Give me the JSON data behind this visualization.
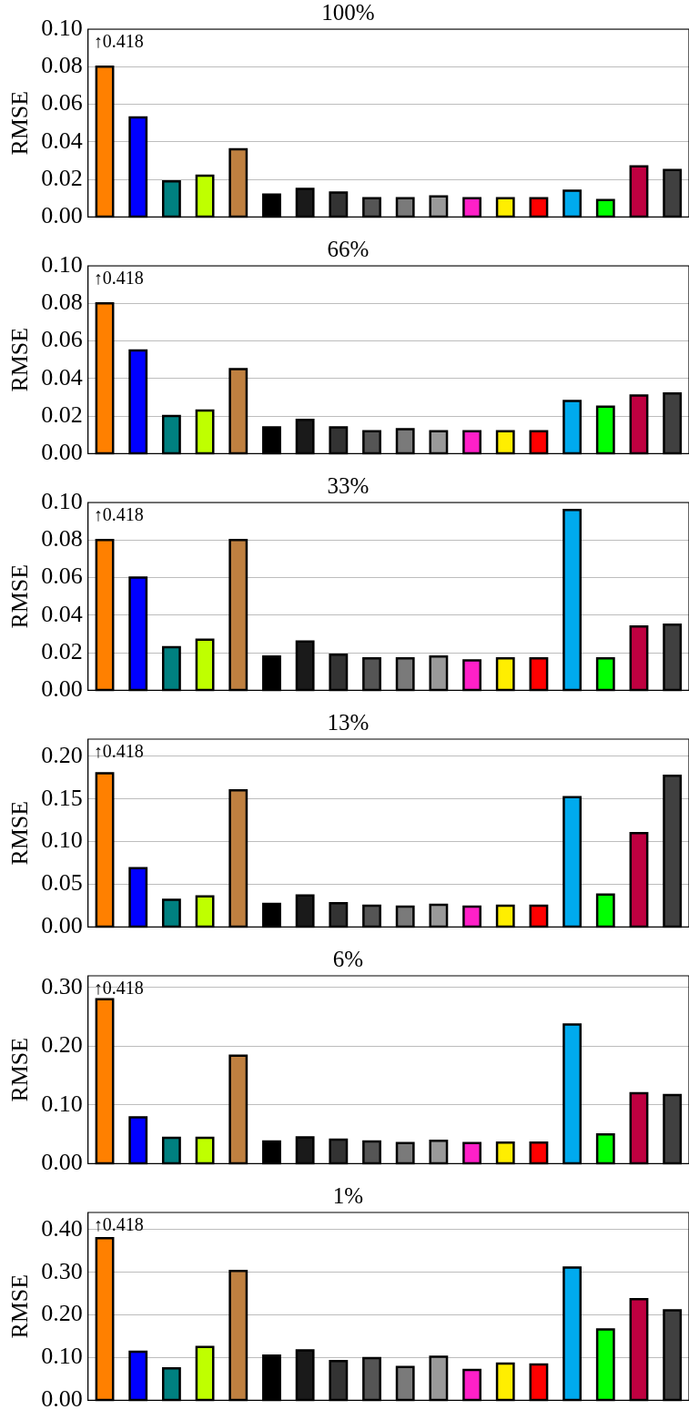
{
  "chart_data": [
    {
      "type": "bar",
      "title": "100%",
      "ylabel": "RMSE",
      "categories": [
        null,
        null,
        null,
        null,
        null,
        null,
        null,
        null,
        null,
        null,
        null,
        null,
        null,
        null,
        null,
        null,
        null,
        null
      ],
      "values": [
        0.08,
        0.053,
        0.019,
        0.022,
        0.036,
        0.012,
        0.015,
        0.013,
        0.01,
        0.01,
        0.011,
        0.01,
        0.01,
        0.01,
        0.014,
        0.009,
        0.027,
        0.025
      ],
      "colors": [
        "#ff8000",
        "#0000ff",
        "#008080",
        "#bfff00",
        "#bf8040",
        "#000000",
        "#1a1a1a",
        "#333333",
        "#555555",
        "#7a7a7a",
        "#999999",
        "#ff20c8",
        "#ffee00",
        "#ff0000",
        "#00aaee",
        "#00ff00",
        "#bf0040",
        "#404040"
      ],
      "ylim": [
        0,
        0.1
      ],
      "yticks": [
        {
          "value": 0,
          "label": "0.00"
        },
        {
          "value": 0.02,
          "label": "0.02"
        },
        {
          "value": 0.04,
          "label": "0.04"
        },
        {
          "value": 0.06,
          "label": "0.06"
        },
        {
          "value": 0.08,
          "label": "0.08"
        },
        {
          "value": 0.1,
          "label": "0.10"
        }
      ],
      "grid": "y",
      "legend": false,
      "tick_labels": "y",
      "annotations": [
        "↑0.418"
      ]
    },
    {
      "type": "bar",
      "title": "66%",
      "ylabel": "RMSE",
      "categories": [
        null,
        null,
        null,
        null,
        null,
        null,
        null,
        null,
        null,
        null,
        null,
        null,
        null,
        null,
        null,
        null,
        null,
        null
      ],
      "values": [
        0.08,
        0.055,
        0.02,
        0.023,
        0.045,
        0.014,
        0.018,
        0.014,
        0.012,
        0.013,
        0.012,
        0.012,
        0.012,
        0.012,
        0.028,
        0.025,
        0.031,
        0.032
      ],
      "colors": [
        "#ff8000",
        "#0000ff",
        "#008080",
        "#bfff00",
        "#bf8040",
        "#000000",
        "#1a1a1a",
        "#333333",
        "#555555",
        "#7a7a7a",
        "#999999",
        "#ff20c8",
        "#ffee00",
        "#ff0000",
        "#00aaee",
        "#00ff00",
        "#bf0040",
        "#404040"
      ],
      "ylim": [
        0,
        0.1
      ],
      "yticks": [
        {
          "value": 0,
          "label": "0.00"
        },
        {
          "value": 0.02,
          "label": "0.02"
        },
        {
          "value": 0.04,
          "label": "0.04"
        },
        {
          "value": 0.06,
          "label": "0.06"
        },
        {
          "value": 0.08,
          "label": "0.08"
        },
        {
          "value": 0.1,
          "label": "0.10"
        }
      ],
      "grid": "y",
      "legend": false,
      "tick_labels": "y",
      "annotations": [
        "↑0.418"
      ]
    },
    {
      "type": "bar",
      "title": "33%",
      "ylabel": "RMSE",
      "categories": [
        null,
        null,
        null,
        null,
        null,
        null,
        null,
        null,
        null,
        null,
        null,
        null,
        null,
        null,
        null,
        null,
        null,
        null
      ],
      "values": [
        0.08,
        0.06,
        0.023,
        0.027,
        0.08,
        0.018,
        0.026,
        0.019,
        0.017,
        0.017,
        0.018,
        0.016,
        0.017,
        0.017,
        0.096,
        0.017,
        0.034,
        0.035
      ],
      "colors": [
        "#ff8000",
        "#0000ff",
        "#008080",
        "#bfff00",
        "#bf8040",
        "#000000",
        "#1a1a1a",
        "#333333",
        "#555555",
        "#7a7a7a",
        "#999999",
        "#ff20c8",
        "#ffee00",
        "#ff0000",
        "#00aaee",
        "#00ff00",
        "#bf0040",
        "#404040"
      ],
      "ylim": [
        0,
        0.1
      ],
      "yticks": [
        {
          "value": 0,
          "label": "0.00"
        },
        {
          "value": 0.02,
          "label": "0.02"
        },
        {
          "value": 0.04,
          "label": "0.04"
        },
        {
          "value": 0.06,
          "label": "0.06"
        },
        {
          "value": 0.08,
          "label": "0.08"
        },
        {
          "value": 0.1,
          "label": "0.10"
        }
      ],
      "grid": "y",
      "legend": false,
      "tick_labels": "y",
      "annotations": [
        "↑0.418"
      ]
    },
    {
      "type": "bar",
      "title": "13%",
      "ylabel": "RMSE",
      "categories": [
        null,
        null,
        null,
        null,
        null,
        null,
        null,
        null,
        null,
        null,
        null,
        null,
        null,
        null,
        null,
        null,
        null,
        null
      ],
      "values": [
        0.18,
        0.069,
        0.032,
        0.036,
        0.16,
        0.027,
        0.037,
        0.028,
        0.025,
        0.024,
        0.026,
        0.024,
        0.025,
        0.025,
        0.152,
        0.038,
        0.11,
        0.177
      ],
      "colors": [
        "#ff8000",
        "#0000ff",
        "#008080",
        "#bfff00",
        "#bf8040",
        "#000000",
        "#1a1a1a",
        "#333333",
        "#555555",
        "#7a7a7a",
        "#999999",
        "#ff20c8",
        "#ffee00",
        "#ff0000",
        "#00aaee",
        "#00ff00",
        "#bf0040",
        "#404040"
      ],
      "ylim": [
        0,
        0.22
      ],
      "yticks": [
        {
          "value": 0,
          "label": "0.00"
        },
        {
          "value": 0.05,
          "label": "0.05"
        },
        {
          "value": 0.1,
          "label": "0.10"
        },
        {
          "value": 0.15,
          "label": "0.15"
        },
        {
          "value": 0.2,
          "label": "0.20"
        }
      ],
      "grid": "y",
      "legend": false,
      "tick_labels": "y",
      "annotations": [
        "↑0.418"
      ]
    },
    {
      "type": "bar",
      "title": "6%",
      "ylabel": "RMSE",
      "categories": [
        null,
        null,
        null,
        null,
        null,
        null,
        null,
        null,
        null,
        null,
        null,
        null,
        null,
        null,
        null,
        null,
        null,
        null
      ],
      "values": [
        0.28,
        0.079,
        0.044,
        0.044,
        0.184,
        0.038,
        0.045,
        0.041,
        0.038,
        0.035,
        0.039,
        0.035,
        0.036,
        0.036,
        0.237,
        0.05,
        0.12,
        0.117
      ],
      "colors": [
        "#ff8000",
        "#0000ff",
        "#008080",
        "#bfff00",
        "#bf8040",
        "#000000",
        "#1a1a1a",
        "#333333",
        "#555555",
        "#7a7a7a",
        "#999999",
        "#ff20c8",
        "#ffee00",
        "#ff0000",
        "#00aaee",
        "#00ff00",
        "#bf0040",
        "#404040"
      ],
      "ylim": [
        0,
        0.32
      ],
      "yticks": [
        {
          "value": 0,
          "label": "0.00"
        },
        {
          "value": 0.1,
          "label": "0.10"
        },
        {
          "value": 0.2,
          "label": "0.20"
        },
        {
          "value": 0.3,
          "label": "0.30"
        }
      ],
      "grid": "y",
      "legend": false,
      "tick_labels": "y",
      "annotations": [
        "↑0.418"
      ]
    },
    {
      "type": "bar",
      "title": "1%",
      "ylabel": "RMSE",
      "categories": [
        null,
        null,
        null,
        null,
        null,
        null,
        null,
        null,
        null,
        null,
        null,
        null,
        null,
        null,
        null,
        null,
        null,
        null
      ],
      "values": [
        0.38,
        0.114,
        0.075,
        0.125,
        0.303,
        0.105,
        0.117,
        0.092,
        0.099,
        0.078,
        0.102,
        0.071,
        0.086,
        0.084,
        0.311,
        0.166,
        0.237,
        0.211
      ],
      "colors": [
        "#ff8000",
        "#0000ff",
        "#008080",
        "#bfff00",
        "#bf8040",
        "#000000",
        "#1a1a1a",
        "#333333",
        "#555555",
        "#7a7a7a",
        "#999999",
        "#ff20c8",
        "#ffee00",
        "#ff0000",
        "#00aaee",
        "#00ff00",
        "#bf0040",
        "#404040"
      ],
      "ylim": [
        0,
        0.44
      ],
      "yticks": [
        {
          "value": 0,
          "label": "0.00"
        },
        {
          "value": 0.1,
          "label": "0.10"
        },
        {
          "value": 0.2,
          "label": "0.20"
        },
        {
          "value": 0.3,
          "label": "0.30"
        },
        {
          "value": 0.4,
          "label": "0.40"
        }
      ],
      "grid": "y",
      "legend": false,
      "tick_labels": "y",
      "annotations": [
        "↑0.418"
      ]
    }
  ]
}
